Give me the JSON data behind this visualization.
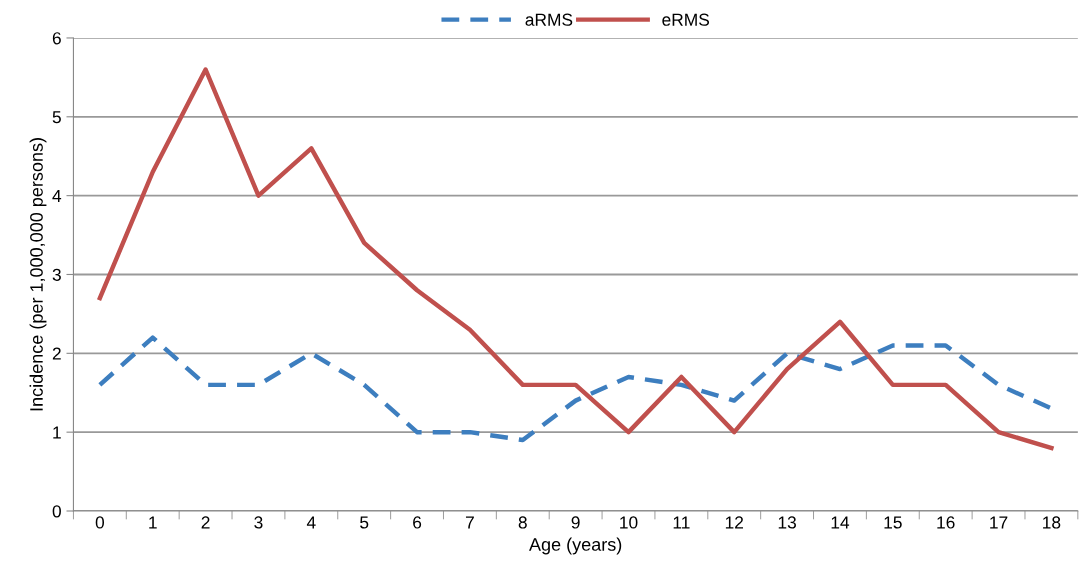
{
  "chart_data": {
    "type": "line",
    "xlabel": "Age (years)",
    "ylabel": "Incidence (per 1,000,000 persons)",
    "categories": [
      "0",
      "1",
      "2",
      "3",
      "4",
      "5",
      "6",
      "7",
      "8",
      "9",
      "10",
      "11",
      "12",
      "13",
      "14",
      "15",
      "16",
      "17",
      "18"
    ],
    "series": [
      {
        "name": "aRMS",
        "color": "#3d7ebf",
        "line_style": "dashed",
        "values": [
          1.6,
          2.2,
          1.6,
          1.6,
          2.0,
          1.6,
          1.0,
          1.0,
          0.9,
          1.4,
          1.7,
          1.6,
          1.4,
          2.0,
          1.8,
          2.1,
          2.1,
          1.6,
          1.3
        ]
      },
      {
        "name": "eRMS",
        "color": "#c0504d",
        "line_style": "solid",
        "values": [
          2.7,
          4.3,
          5.6,
          4.0,
          4.6,
          3.4,
          2.8,
          2.3,
          1.6,
          1.6,
          1.0,
          1.7,
          1.0,
          1.8,
          2.4,
          1.6,
          1.6,
          1.0,
          0.8
        ]
      }
    ],
    "ylim": [
      0,
      6
    ],
    "yticks": [
      0,
      1,
      2,
      3,
      4,
      5,
      6
    ],
    "grid": "y",
    "legend": "top",
    "marker": "none"
  }
}
